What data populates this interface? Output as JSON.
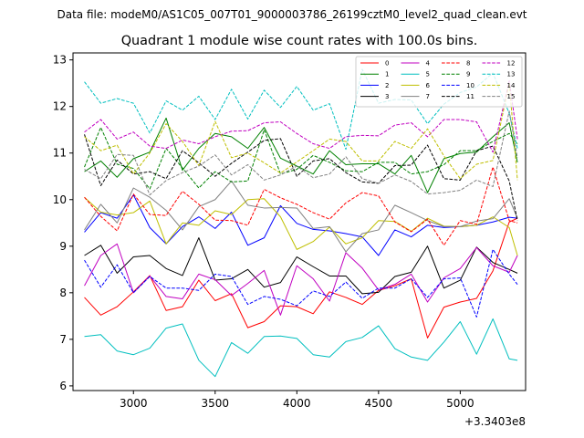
{
  "suptitle": "Data file: modeM0/AS1C05_007T01_9000003786_26199cztM0_level2_quad_clean.evt",
  "chart_data": {
    "type": "line",
    "title": "Quadrant 1 module wise count rates with 100.0s bins.",
    "xlabel": "",
    "ylabel": "",
    "x_offset_label": "+3.3403e8",
    "xlim": [
      2630,
      5400
    ],
    "ylim": [
      5.9,
      13.15
    ],
    "x_ticks": [
      3000,
      3500,
      4000,
      4500,
      5000
    ],
    "y_ticks": [
      6,
      7,
      8,
      9,
      10,
      11,
      12,
      13
    ],
    "x": [
      2700,
      2800,
      2900,
      3000,
      3100,
      3200,
      3300,
      3400,
      3500,
      3600,
      3700,
      3800,
      3900,
      4000,
      4100,
      4200,
      4300,
      4400,
      4500,
      4600,
      4700,
      4800,
      4900,
      5000,
      5100,
      5200,
      5300,
      5350
    ],
    "legend_position": "upper right",
    "legend_columns": 4,
    "series": [
      {
        "name": "0",
        "color": "#ff0000",
        "dash": "solid",
        "values": [
          7.9,
          7.52,
          7.7,
          8.02,
          8.37,
          7.62,
          7.7,
          8.27,
          7.83,
          7.98,
          7.25,
          7.38,
          7.72,
          7.7,
          7.55,
          8.02,
          7.9,
          7.75,
          8.05,
          8.15,
          8.3,
          7.03,
          7.69,
          7.8,
          7.88,
          8.47,
          9.52,
          9.6
        ]
      },
      {
        "name": "1",
        "color": "#008000",
        "dash": "solid",
        "values": [
          10.6,
          10.83,
          10.48,
          10.88,
          11.02,
          11.75,
          10.63,
          11.1,
          11.42,
          11.35,
          11.1,
          11.55,
          10.89,
          10.72,
          10.55,
          11.05,
          10.75,
          10.77,
          10.77,
          10.55,
          10.95,
          10.15,
          10.88,
          10.99,
          11.02,
          11.35,
          11.65,
          10.8
        ]
      },
      {
        "name": "2",
        "color": "#0000ff",
        "dash": "solid",
        "values": [
          9.3,
          9.72,
          9.6,
          10.1,
          9.4,
          9.05,
          9.42,
          9.63,
          9.38,
          9.73,
          9.02,
          9.18,
          9.87,
          9.49,
          9.36,
          9.33,
          9.27,
          9.2,
          8.8,
          9.35,
          9.2,
          9.45,
          9.4,
          9.42,
          9.45,
          9.52,
          9.62,
          9.6
        ]
      },
      {
        "name": "3",
        "color": "#000000",
        "dash": "solid",
        "values": [
          8.8,
          9.02,
          8.42,
          8.77,
          8.8,
          8.52,
          8.37,
          9.18,
          8.27,
          8.3,
          8.5,
          8.12,
          8.22,
          8.77,
          8.56,
          8.36,
          8.36,
          7.98,
          8.01,
          8.35,
          8.44,
          9.0,
          8.1,
          8.27,
          8.98,
          8.65,
          8.5,
          8.42
        ]
      },
      {
        "name": "4",
        "color": "#c000c0",
        "dash": "solid",
        "values": [
          8.15,
          8.8,
          9.05,
          8.0,
          8.36,
          7.92,
          7.87,
          8.4,
          8.28,
          7.94,
          8.2,
          8.48,
          7.52,
          8.58,
          8.3,
          7.82,
          8.86,
          8.53,
          8.06,
          8.18,
          8.4,
          7.8,
          8.32,
          8.52,
          8.97,
          8.58,
          8.44,
          8.8
        ]
      },
      {
        "name": "5",
        "color": "#00bfbf",
        "dash": "solid",
        "values": [
          7.06,
          7.1,
          6.75,
          6.67,
          6.81,
          7.24,
          7.33,
          6.55,
          6.2,
          6.93,
          6.7,
          7.06,
          7.07,
          7.02,
          6.67,
          6.62,
          6.95,
          7.04,
          7.29,
          6.8,
          6.62,
          6.55,
          6.94,
          7.38,
          6.68,
          7.44,
          6.58,
          6.55
        ]
      },
      {
        "name": "6",
        "color": "#bfbf00",
        "dash": "solid",
        "values": [
          10.05,
          9.73,
          9.67,
          9.72,
          9.97,
          9.05,
          9.5,
          9.45,
          9.76,
          9.68,
          10.0,
          10.02,
          9.63,
          8.93,
          9.1,
          9.41,
          9.05,
          9.18,
          9.55,
          9.53,
          9.32,
          9.6,
          9.43,
          9.42,
          9.45,
          9.63,
          9.4,
          8.8
        ]
      },
      {
        "name": "7",
        "color": "#808080",
        "dash": "solid",
        "values": [
          9.35,
          9.9,
          9.5,
          10.25,
          10.05,
          9.77,
          9.35,
          9.85,
          10.0,
          10.4,
          9.88,
          9.82,
          9.83,
          9.82,
          9.38,
          9.42,
          8.88,
          9.27,
          9.35,
          9.88,
          9.72,
          9.55,
          9.42,
          9.42,
          9.54,
          9.59,
          10.02,
          9.6
        ]
      },
      {
        "name": "8",
        "color": "#ff0000",
        "dash": "dashed",
        "values": [
          10.05,
          9.64,
          9.33,
          10.12,
          9.68,
          9.66,
          10.18,
          9.9,
          9.56,
          9.55,
          9.45,
          10.22,
          10.04,
          9.9,
          9.72,
          9.58,
          9.93,
          10.15,
          10.08,
          9.52,
          9.31,
          9.58,
          9.02,
          9.55,
          9.47,
          10.7,
          9.55,
          9.5
        ]
      },
      {
        "name": "9",
        "color": "#008000",
        "dash": "dashed",
        "values": [
          10.7,
          11.55,
          10.76,
          10.67,
          10.23,
          11.1,
          10.68,
          10.25,
          10.6,
          10.38,
          10.4,
          11.5,
          10.55,
          10.65,
          10.95,
          10.8,
          10.62,
          10.6,
          10.8,
          10.8,
          10.55,
          10.6,
          10.75,
          11.05,
          11.05,
          11.25,
          11.42,
          11.2
        ]
      },
      {
        "name": "10",
        "color": "#0000ff",
        "dash": "dashed",
        "values": [
          8.7,
          8.12,
          8.6,
          8.0,
          8.35,
          8.1,
          8.1,
          8.05,
          8.4,
          8.35,
          7.75,
          7.92,
          7.86,
          7.72,
          8.04,
          7.92,
          8.23,
          7.88,
          8.1,
          8.1,
          8.3,
          7.9,
          8.3,
          8.32,
          7.48,
          8.93,
          8.4,
          8.18
        ]
      },
      {
        "name": "11",
        "color": "#000000",
        "dash": "dashed",
        "values": [
          11.4,
          10.3,
          10.85,
          10.55,
          10.6,
          10.45,
          11.05,
          10.79,
          10.5,
          10.78,
          11.02,
          11.27,
          11.31,
          10.5,
          10.83,
          10.88,
          10.58,
          10.38,
          10.35,
          10.73,
          10.74,
          11.17,
          10.45,
          10.42,
          11.05,
          11.15,
          10.4,
          9.55
        ]
      },
      {
        "name": "12",
        "color": "#c000c0",
        "dash": "dashed",
        "values": [
          11.45,
          11.72,
          11.3,
          11.45,
          11.15,
          11.1,
          11.28,
          11.2,
          11.35,
          11.47,
          11.48,
          11.65,
          11.67,
          11.42,
          11.2,
          11.1,
          11.35,
          11.38,
          11.37,
          11.6,
          11.65,
          11.35,
          11.72,
          11.72,
          11.67,
          11.02,
          12.55,
          11.3
        ]
      },
      {
        "name": "13",
        "color": "#00bfbf",
        "dash": "dashed",
        "values": [
          12.53,
          12.07,
          12.17,
          12.07,
          11.43,
          12.12,
          11.92,
          12.22,
          11.72,
          12.37,
          11.73,
          12.35,
          11.98,
          12.43,
          11.92,
          12.06,
          11.08,
          12.8,
          12.07,
          12.15,
          12.14,
          11.63,
          12.05,
          12.3,
          12.42,
          12.72,
          11.85,
          11.1
        ]
      },
      {
        "name": "14",
        "color": "#bfbf00",
        "dash": "dashed",
        "values": [
          11.35,
          11.05,
          11.17,
          10.55,
          11.0,
          11.63,
          11.25,
          10.73,
          11.68,
          10.9,
          11.0,
          10.79,
          10.57,
          10.81,
          11.05,
          11.3,
          11.25,
          10.83,
          10.83,
          11.25,
          11.1,
          11.52,
          10.94,
          10.45,
          10.76,
          10.84,
          12.5,
          10.42
        ]
      },
      {
        "name": "15",
        "color": "#808080",
        "dash": "dashed",
        "values": [
          10.65,
          10.45,
          10.97,
          10.95,
          10.1,
          10.41,
          10.58,
          10.72,
          10.96,
          10.53,
          10.75,
          10.42,
          10.53,
          10.72,
          10.47,
          10.55,
          10.92,
          10.45,
          10.35,
          10.53,
          10.39,
          10.12,
          10.15,
          10.2,
          10.42,
          10.28,
          11.9,
          10.9
        ]
      }
    ]
  }
}
